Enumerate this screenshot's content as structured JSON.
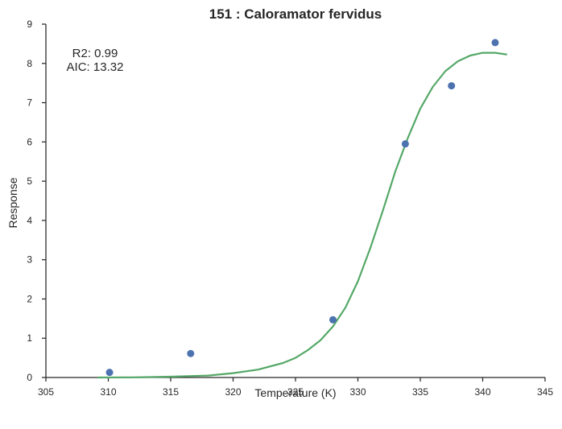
{
  "chart_data": {
    "type": "scatter",
    "title": "151 : Caloramator fervidus",
    "xlabel": "Temperature (K)",
    "ylabel": "Response",
    "xlim": [
      305,
      345
    ],
    "ylim": [
      0,
      9
    ],
    "xticks": [
      305,
      310,
      315,
      320,
      325,
      330,
      335,
      340,
      345
    ],
    "yticks": [
      0,
      1,
      2,
      3,
      4,
      5,
      6,
      7,
      8,
      9
    ],
    "grid": false,
    "annotations": [
      "R2: 0.99",
      "AIC: 13.32"
    ],
    "point_color": "#4c72b0",
    "fit_color": "#55a868",
    "points": {
      "x": [
        310.1,
        316.6,
        328.0,
        333.8,
        337.5,
        341.0
      ],
      "y": [
        0.13,
        0.61,
        1.47,
        5.95,
        7.43,
        8.53
      ]
    },
    "fit_curve": {
      "x": [
        309.2,
        312,
        315,
        318,
        320,
        322,
        324,
        325,
        326,
        327,
        328,
        329,
        330,
        331,
        332,
        333,
        334,
        335,
        336,
        337,
        338,
        339,
        340,
        341,
        341.9
      ],
      "y": [
        0.0,
        0.005,
        0.02,
        0.05,
        0.11,
        0.2,
        0.37,
        0.5,
        0.7,
        0.95,
        1.3,
        1.78,
        2.45,
        3.3,
        4.25,
        5.25,
        6.1,
        6.85,
        7.4,
        7.8,
        8.05,
        8.2,
        8.27,
        8.27,
        8.23
      ]
    }
  }
}
